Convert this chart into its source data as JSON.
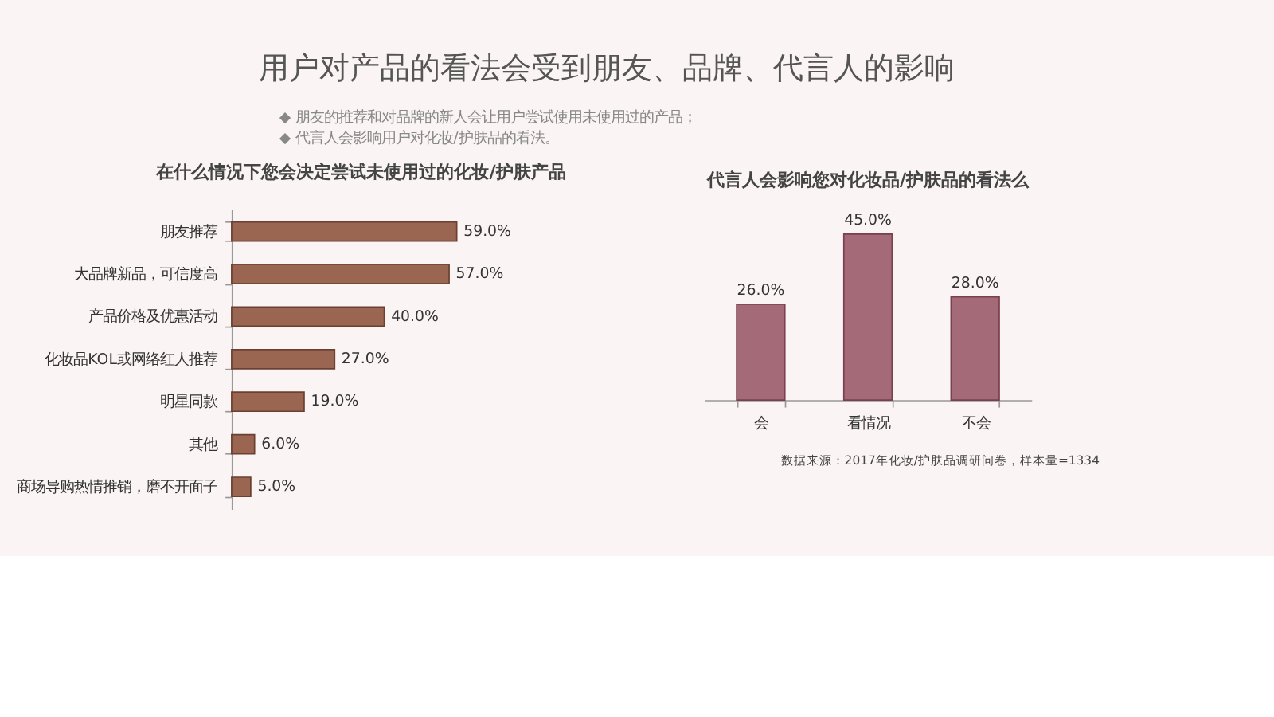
{
  "chart_data": [
    {
      "type": "bar",
      "orientation": "horizontal",
      "title": "在什么情况下您会决定尝试未使用过的化妆/护肤产品",
      "annotations": [
        "用户对产品的看法会受到朋友、品牌、代言人的影响",
        "◆ 朋友的推荐和对品牌的新人会让用户尝试使用未使用过的产品；",
        "◆ 代言人会影响用户对化妆/护肤品的看法。"
      ],
      "categories": [
        "朋友推荐",
        "大品牌新品，可信度高",
        "产品价格及优惠活动",
        "化妆品KOL或网络红人推荐",
        "明星同款",
        "其他",
        "商场导购热情推销，磨不开面子"
      ],
      "values": [
        59.0,
        57.0,
        40.0,
        27.0,
        19.0,
        6.0,
        5.0
      ],
      "value_labels": [
        "59.0%",
        "57.0%",
        "40.0%",
        "27.0%",
        "19.0%",
        "6.0%",
        "5.0%"
      ],
      "color": "#9a6652"
    },
    {
      "type": "bar",
      "title": "代言人会影响您对化妆品/护肤品的看法么",
      "annotations": [
        "数据来源：2017年化妆/护肤品调研问卷，样本量=1334"
      ],
      "categories": [
        "会",
        "看情况",
        "不会"
      ],
      "values": [
        26.0,
        45.0,
        28.0
      ],
      "value_labels": [
        "26.0%",
        "45.0%",
        "28.0%"
      ],
      "color": "#a46a78"
    }
  ]
}
